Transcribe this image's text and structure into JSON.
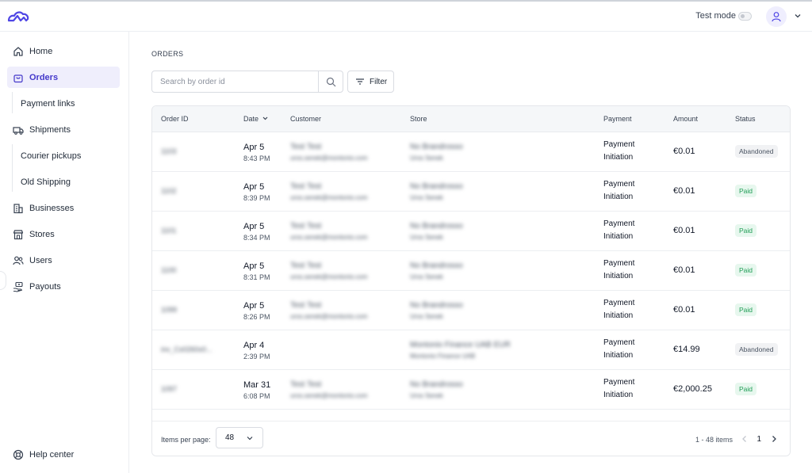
{
  "header": {
    "logo_icon": "cloud-logo-icon",
    "test_mode_label": "Test mode",
    "avatar_icon": "user-icon"
  },
  "sidebar": {
    "items": [
      {
        "id": "home",
        "label": "Home",
        "icon": "home-icon"
      },
      {
        "id": "orders",
        "label": "Orders",
        "icon": "shopping-bag-icon",
        "active": true
      },
      {
        "id": "payment-links",
        "label": "Payment links",
        "sub": true
      },
      {
        "id": "shipments",
        "label": "Shipments",
        "icon": "truck-icon"
      },
      {
        "id": "courier-pickups",
        "label": "Courier pickups",
        "sub": true
      },
      {
        "id": "old-shipping",
        "label": "Old Shipping",
        "sub": true
      },
      {
        "id": "businesses",
        "label": "Businesses",
        "icon": "building-icon"
      },
      {
        "id": "stores",
        "label": "Stores",
        "icon": "store-icon"
      },
      {
        "id": "users",
        "label": "Users",
        "icon": "users-icon"
      },
      {
        "id": "payouts",
        "label": "Payouts",
        "icon": "payout-icon"
      }
    ],
    "help_label": "Help center"
  },
  "main": {
    "breadcrumb": "ORDERS",
    "search": {
      "placeholder": "Search by order id",
      "value": ""
    },
    "filter_label": "Filter",
    "table": {
      "columns": {
        "order_id": "Order ID",
        "date": "Date",
        "customer": "Customer",
        "store": "Store",
        "payment": "Payment",
        "amount": "Amount",
        "status": "Status"
      },
      "rows": [
        {
          "order_id": "1103",
          "date": "Apr 5",
          "time": "8:43 PM",
          "customer_name": "Test Test",
          "customer_email": "uros.senek@montonio.com",
          "store_name": "No Brandrosso",
          "store_sub": "Uros Senek",
          "payment_1": "Payment",
          "payment_2": "Initiation",
          "amount": "€0.01",
          "status": "Abandoned"
        },
        {
          "order_id": "1102",
          "date": "Apr 5",
          "time": "8:39 PM",
          "customer_name": "Test Test",
          "customer_email": "uros.senek@montonio.com",
          "store_name": "No Brandrosso",
          "store_sub": "Uros Senek",
          "payment_1": "Payment",
          "payment_2": "Initiation",
          "amount": "€0.01",
          "status": "Paid"
        },
        {
          "order_id": "1101",
          "date": "Apr 5",
          "time": "8:34 PM",
          "customer_name": "Test Test",
          "customer_email": "uros.senek@montonio.com",
          "store_name": "No Brandrosso",
          "store_sub": "Uros Senek",
          "payment_1": "Payment",
          "payment_2": "Initiation",
          "amount": "€0.01",
          "status": "Paid"
        },
        {
          "order_id": "1100",
          "date": "Apr 5",
          "time": "8:31 PM",
          "customer_name": "Test Test",
          "customer_email": "uros.senek@montonio.com",
          "store_name": "No Brandrosso",
          "store_sub": "Uros Senek",
          "payment_1": "Payment",
          "payment_2": "Initiation",
          "amount": "€0.01",
          "status": "Paid"
        },
        {
          "order_id": "1099",
          "date": "Apr 5",
          "time": "8:26 PM",
          "customer_name": "Test Test",
          "customer_email": "uros.senek@montonio.com",
          "store_name": "No Brandrosso",
          "store_sub": "Uros Senek",
          "payment_1": "Payment",
          "payment_2": "Initiation",
          "amount": "€0.01",
          "status": "Paid"
        },
        {
          "order_id": "inv_Cs0260x0...",
          "date": "Apr 4",
          "time": "2:39 PM",
          "customer_name": "",
          "customer_email": "",
          "store_name": "Montonio Finance UAB EUR",
          "store_sub": "Montonio Finance UAB",
          "payment_1": "Payment",
          "payment_2": "Initiation",
          "amount": "€14.99",
          "status": "Abandoned"
        },
        {
          "order_id": "1097",
          "date": "Mar 31",
          "time": "6:08 PM",
          "customer_name": "Test Test",
          "customer_email": "uros.senek@montonio.com",
          "store_name": "No Brandrosso",
          "store_sub": "Uros Senek",
          "payment_1": "Payment",
          "payment_2": "Initiation",
          "amount": "€2,000.25",
          "status": "Paid"
        }
      ]
    },
    "pagination": {
      "items_per_page_label": "Items per page:",
      "items_per_page": "48",
      "range": "1 - 48 items",
      "page": "1"
    }
  },
  "colors": {
    "accent": "#4338ca",
    "active_bg": "#efeefc",
    "paid_bg": "#e7f7ee",
    "paid_text": "#1f9d55",
    "abandoned_bg": "#f1f2f4"
  }
}
